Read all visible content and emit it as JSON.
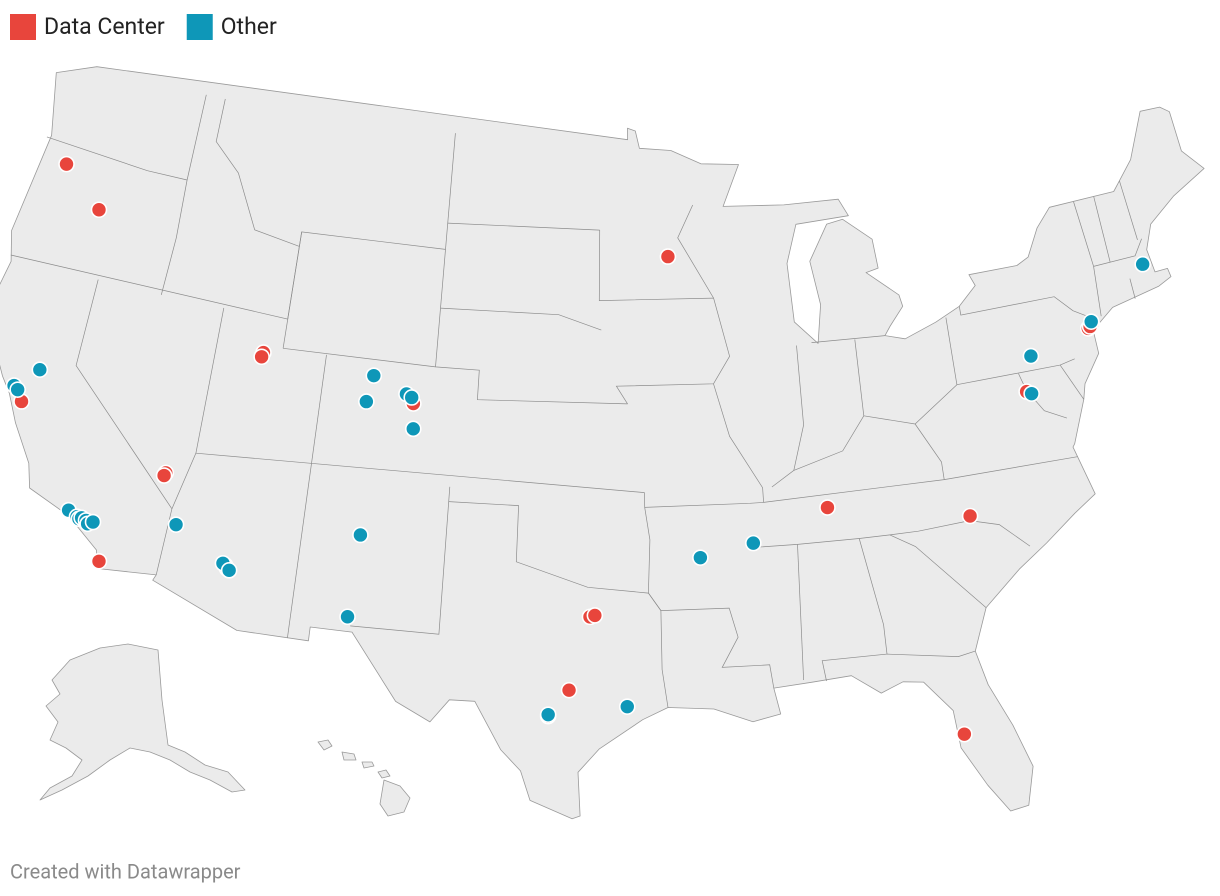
{
  "chart_data": {
    "type": "map",
    "series": [
      {
        "name": "Data Center",
        "color": "#e8453c",
        "lon": [
          -122.9,
          -120.8,
          -121.9,
          -115.15,
          -115.2,
          -117.1,
          -111.9,
          -111.95,
          -112.0,
          -111.9,
          -104.9,
          -93.3,
          -96.9,
          -96.7,
          -97.7,
          -98.5,
          -86.8,
          -80.85,
          -82.4,
          -77.5,
          -74.2,
          -74.0,
          -74.1
        ],
        "lat": [
          45.5,
          44.3,
          37.35,
          36.15,
          36.05,
          32.75,
          40.75,
          40.6,
          33.45,
          33.35,
          39.7,
          44.97,
          32.8,
          32.85,
          30.3,
          29.4,
          36.15,
          35.25,
          27.95,
          39.05,
          40.7,
          40.8,
          40.75
        ]
      },
      {
        "name": "Other",
        "color": "#0e97b8",
        "lon": [
          -121.5,
          -122.4,
          -122.2,
          -118.8,
          -118.4,
          -118.3,
          -118.2,
          -118.0,
          -117.9,
          -117.7,
          -114.3,
          -112.1,
          -111.8,
          -106.8,
          -107.0,
          -105.25,
          -105.0,
          -104.8,
          -106.6,
          -106.75,
          -98.5,
          -95.4,
          -92.3,
          -90.05,
          -77.0,
          -77.3,
          -74.0,
          -71.06
        ],
        "lat": [
          38.55,
          37.8,
          37.7,
          34.2,
          34.05,
          34.0,
          34.05,
          34.0,
          33.9,
          34.0,
          34.5,
          33.5,
          33.3,
          40.5,
          39.6,
          40.0,
          39.9,
          38.85,
          35.1,
          32.3,
          29.45,
          29.75,
          34.75,
          35.15,
          40.2,
          38.95,
          40.9,
          42.36
        ]
      }
    ]
  },
  "footer": "Created with Datawrapper"
}
